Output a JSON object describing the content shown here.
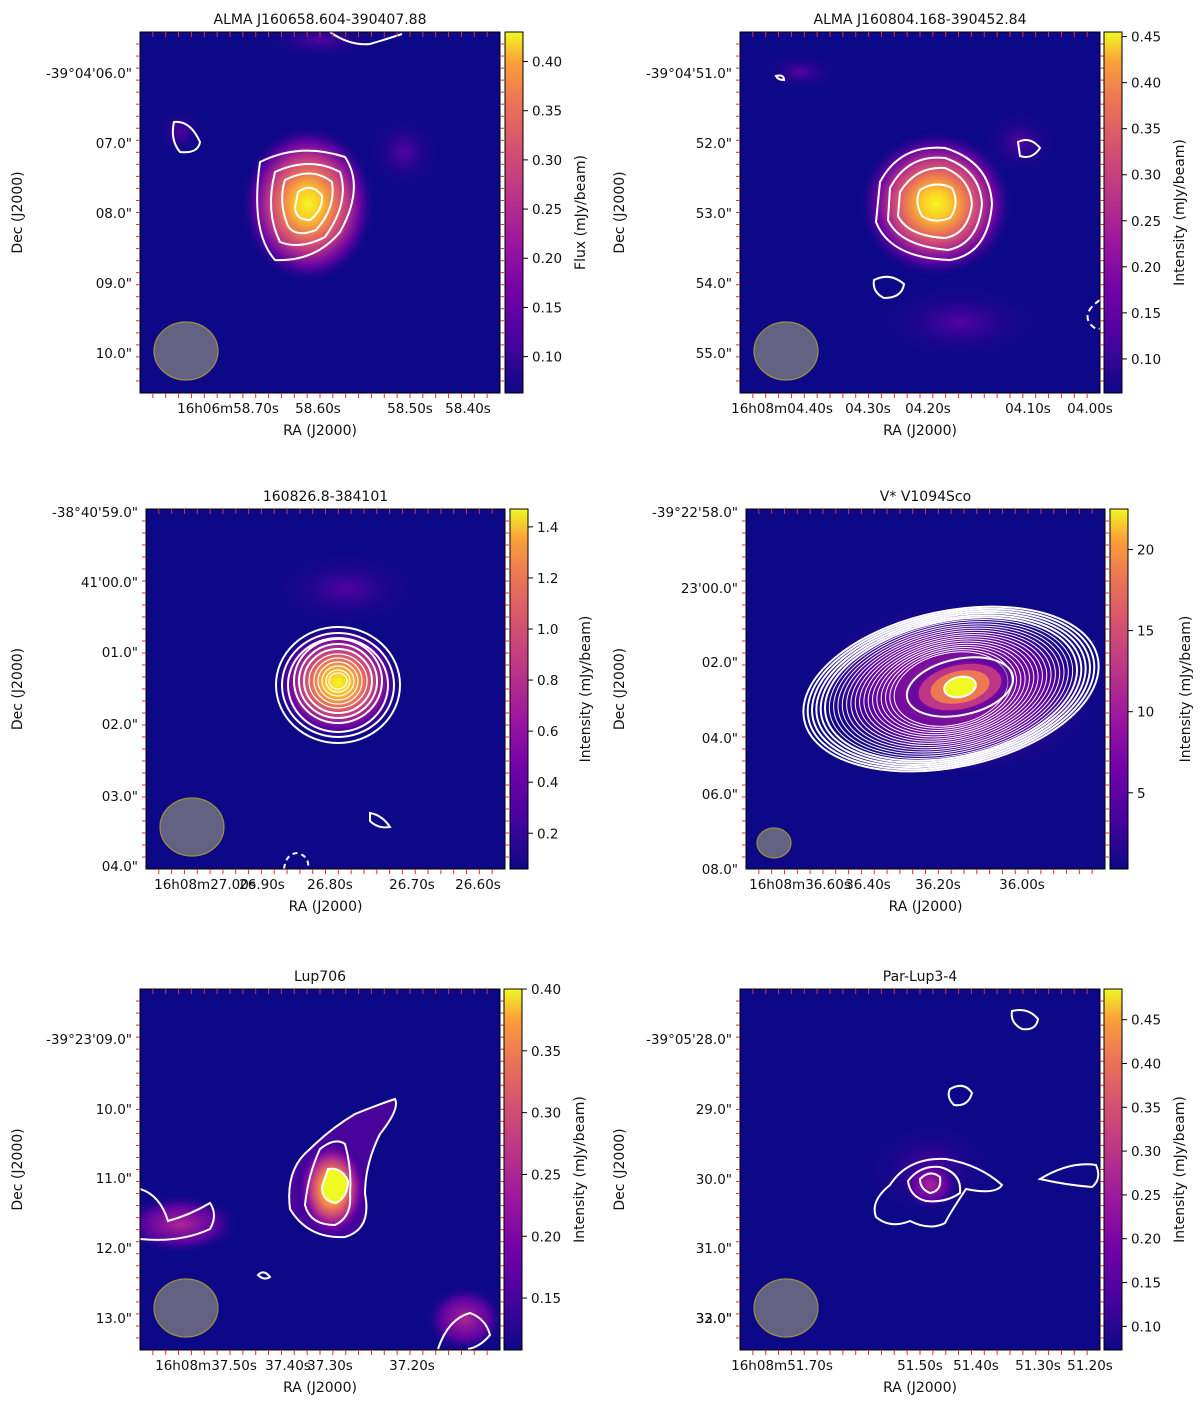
{
  "chart_data": [
    {
      "type": "heatmap",
      "title": "ALMA J160658.604-390407.88",
      "xlabel": "RA (J2000)",
      "ylabel": "Dec (J2000)",
      "xticks": [
        "16h06m58.70s",
        "58.60s",
        "58.50s",
        "58.40s"
      ],
      "yticks": [
        "-39°04'06.0\"",
        "07.0\"",
        "08.0\"",
        "09.0\"",
        "10.0\""
      ],
      "colorbar": {
        "label": "Flux (mJy/beam)",
        "ticks": [
          0.1,
          0.15,
          0.2,
          0.25,
          0.3,
          0.35,
          0.4
        ],
        "range": [
          0.063,
          0.43
        ]
      },
      "colormap": "plasma",
      "beam": "ellipse lower-left"
    },
    {
      "type": "heatmap",
      "title": "ALMA J160804.168-390452.84",
      "xlabel": "RA (J2000)",
      "ylabel": "Dec (J2000)",
      "xticks": [
        "16h08m04.40s",
        "04.30s",
        "04.20s",
        "04.10s",
        "04.00s"
      ],
      "yticks": [
        "-39°04'51.0\"",
        "52.0\"",
        "53.0\"",
        "54.0\"",
        "55.0\""
      ],
      "colorbar": {
        "label": "Intensity (mJy/beam)",
        "ticks": [
          0.1,
          0.15,
          0.2,
          0.25,
          0.3,
          0.35,
          0.4,
          0.45
        ],
        "range": [
          0.063,
          0.455
        ]
      },
      "colormap": "plasma",
      "beam": "ellipse lower-left"
    },
    {
      "type": "heatmap",
      "title": "160826.8-384101",
      "xlabel": "RA (J2000)",
      "ylabel": "Dec (J2000)",
      "xticks": [
        "16h08m27.00s",
        "26.90s",
        "26.80s",
        "26.70s",
        "26.60s"
      ],
      "yticks": [
        "-38°40'59.0\"",
        "41'00.0\"",
        "01.0\"",
        "02.0\"",
        "03.0\"",
        "04.0\""
      ],
      "colorbar": {
        "label": "Intensity (mJy/beam)",
        "ticks": [
          0.2,
          0.4,
          0.6,
          0.8,
          1.0,
          1.2,
          1.4
        ],
        "range": [
          0.06,
          1.47
        ]
      },
      "colormap": "plasma",
      "beam": "ellipse lower-left"
    },
    {
      "type": "heatmap",
      "title": "V* V1094Sco",
      "xlabel": "RA (J2000)",
      "ylabel": "Dec (J2000)",
      "xticks": [
        "16h08m36.60s",
        "36.40s",
        "36.20s",
        "36.00s"
      ],
      "yticks": [
        "-39°22'58.0\"",
        "23'00.0\"",
        "02.0\"",
        "04.0\"",
        "06.0\"",
        "08.0\""
      ],
      "colorbar": {
        "label": "Intensity (mJy/beam)",
        "ticks": [
          5,
          10,
          15,
          20
        ],
        "range": [
          0.3,
          22.5
        ]
      },
      "colormap": "plasma",
      "beam": "ellipse lower-left"
    },
    {
      "type": "heatmap",
      "title": "Lup706",
      "xlabel": "RA (J2000)",
      "ylabel": "Dec (J2000)",
      "xticks": [
        "16h08m37.50s",
        "37.40s",
        "37.30s",
        "37.20s"
      ],
      "yticks": [
        "-39°23'09.0\"",
        "10.0\"",
        "11.0\"",
        "12.0\"",
        "13.0\""
      ],
      "colorbar": {
        "label": "Intensity (mJy/beam)",
        "ticks": [
          0.15,
          0.2,
          0.25,
          0.3,
          0.35,
          0.4
        ],
        "range": [
          0.108,
          0.4
        ]
      },
      "colormap": "plasma",
      "beam": "ellipse lower-left"
    },
    {
      "type": "heatmap",
      "title": "Par-Lup3-4",
      "xlabel": "RA (J2000)",
      "ylabel": "Dec (J2000)",
      "xticks": [
        "16h08m51.70s",
        "51.50s",
        "51.40s",
        "51.30s",
        "51.20s"
      ],
      "yticks": [
        "-39°05'28.0\"",
        "29.0\"",
        "30.0\"",
        "31.0\"",
        "32.0\"",
        "33.0\""
      ],
      "colorbar": {
        "label": "Intensity (mJy/beam)",
        "ticks": [
          0.1,
          0.15,
          0.2,
          0.25,
          0.3,
          0.35,
          0.4,
          0.45
        ],
        "range": [
          0.073,
          0.485
        ]
      },
      "colormap": "plasma",
      "beam": "ellipse lower-left"
    }
  ]
}
